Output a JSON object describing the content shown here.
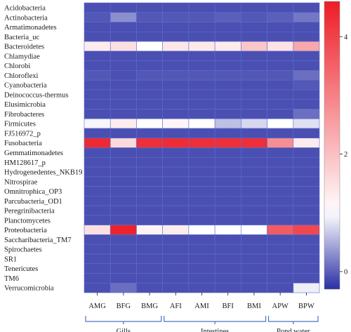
{
  "chart_data": {
    "type": "heatmap",
    "rows": [
      "Acidobacteria",
      "Actinobacteria",
      "Armatimonadetes",
      "Bacteria_uc",
      "Bacteroidetes",
      "Chlamydiae",
      "Chlorobi",
      "Chloroflexi",
      "Cyanobacteria",
      "Deinococcus-thermus",
      "Elusimicrobia",
      "Fibrobacteres",
      "Firmicutes",
      "FJ516972_p",
      "Fusobacteria",
      "Gemmatimonadetes",
      "HM128617_p",
      "Hydrogenedentes_NKB19",
      "Nitrospirae",
      "Omnitrophica_OP3",
      "Parcubacteria_OD1",
      "Peregrinibacteria",
      "Planctomycetes",
      "Proteobacteria",
      "Saccharibacteria_TM7",
      "Spirochaetes",
      "SR1",
      "Tenericutes",
      "TM6",
      "Verrucomicrobia"
    ],
    "columns": [
      "AMG",
      "BFG",
      "BMG",
      "AFI",
      "AMI",
      "BFI",
      "BMI",
      "APW",
      "BPW"
    ],
    "groups": [
      {
        "label": "Gills",
        "columns": [
          "AMG",
          "BFG",
          "BMG"
        ]
      },
      {
        "label": "Intestines",
        "columns": [
          "AFI",
          "AMI",
          "BFI",
          "BMI"
        ]
      },
      {
        "label": "Pond water",
        "columns": [
          "APW",
          "BPW"
        ]
      }
    ],
    "values": [
      [
        -0.1,
        -0.1,
        -0.1,
        -0.1,
        -0.1,
        -0.1,
        -0.1,
        -0.1,
        -0.1
      ],
      [
        -0.05,
        0.3,
        -0.05,
        -0.05,
        -0.05,
        0.0,
        -0.05,
        0.0,
        0.15
      ],
      [
        -0.1,
        -0.1,
        -0.1,
        -0.1,
        -0.1,
        -0.1,
        -0.1,
        -0.1,
        -0.1
      ],
      [
        -0.1,
        -0.1,
        -0.1,
        -0.1,
        -0.1,
        -0.1,
        -0.1,
        -0.1,
        -0.1
      ],
      [
        1.3,
        1.5,
        1.0,
        1.4,
        1.35,
        1.3,
        1.9,
        1.45,
        2.4
      ],
      [
        -0.1,
        -0.1,
        -0.1,
        -0.1,
        -0.1,
        -0.1,
        -0.1,
        -0.1,
        -0.1
      ],
      [
        -0.1,
        -0.1,
        -0.1,
        -0.1,
        -0.1,
        -0.1,
        -0.1,
        -0.1,
        -0.1
      ],
      [
        -0.05,
        -0.1,
        -0.05,
        -0.05,
        -0.05,
        -0.05,
        -0.05,
        -0.05,
        0.1
      ],
      [
        -0.1,
        -0.1,
        -0.1,
        -0.1,
        -0.1,
        -0.1,
        -0.1,
        -0.1,
        -0.05
      ],
      [
        -0.1,
        -0.1,
        -0.1,
        -0.1,
        -0.1,
        -0.1,
        -0.1,
        -0.1,
        -0.1
      ],
      [
        -0.1,
        -0.1,
        -0.1,
        -0.1,
        -0.1,
        -0.1,
        -0.1,
        -0.1,
        -0.1
      ],
      [
        -0.1,
        -0.1,
        -0.1,
        -0.1,
        -0.1,
        -0.1,
        -0.1,
        -0.1,
        0.1
      ],
      [
        0.95,
        1.3,
        1.0,
        1.15,
        1.0,
        0.6,
        0.75,
        1.0,
        0.8
      ],
      [
        -0.1,
        -0.1,
        -0.1,
        -0.1,
        -0.1,
        -0.1,
        -0.1,
        -0.1,
        -0.1
      ],
      [
        4.4,
        1.6,
        4.3,
        4.35,
        4.3,
        4.3,
        4.3,
        2.8,
        1.3
      ],
      [
        -0.1,
        -0.1,
        -0.1,
        -0.1,
        -0.1,
        -0.1,
        -0.1,
        -0.1,
        -0.1
      ],
      [
        -0.1,
        -0.1,
        -0.1,
        -0.1,
        -0.1,
        -0.1,
        -0.1,
        -0.1,
        -0.1
      ],
      [
        -0.1,
        -0.1,
        -0.1,
        -0.1,
        -0.1,
        -0.1,
        -0.1,
        -0.1,
        -0.1
      ],
      [
        -0.1,
        -0.1,
        -0.1,
        -0.1,
        -0.1,
        -0.1,
        -0.1,
        -0.1,
        -0.1
      ],
      [
        -0.1,
        -0.1,
        -0.1,
        -0.1,
        -0.1,
        -0.1,
        -0.1,
        -0.1,
        -0.1
      ],
      [
        -0.1,
        -0.1,
        -0.1,
        -0.1,
        -0.1,
        -0.1,
        -0.1,
        -0.1,
        -0.1
      ],
      [
        -0.1,
        -0.1,
        -0.1,
        -0.1,
        -0.1,
        -0.1,
        -0.1,
        -0.1,
        -0.1
      ],
      [
        -0.1,
        -0.1,
        -0.1,
        -0.1,
        -0.1,
        -0.1,
        -0.1,
        -0.1,
        -0.1
      ],
      [
        1.5,
        4.5,
        1.2,
        1.3,
        1.0,
        1.0,
        1.0,
        3.6,
        3.9
      ],
      [
        -0.1,
        -0.1,
        -0.1,
        -0.1,
        -0.1,
        -0.1,
        -0.1,
        -0.1,
        -0.1
      ],
      [
        -0.1,
        -0.1,
        -0.1,
        -0.1,
        -0.1,
        -0.1,
        -0.1,
        -0.1,
        -0.1
      ],
      [
        -0.1,
        -0.1,
        -0.1,
        -0.1,
        -0.1,
        -0.1,
        -0.1,
        -0.1,
        -0.1
      ],
      [
        -0.1,
        -0.1,
        -0.1,
        -0.1,
        -0.1,
        -0.1,
        -0.1,
        -0.1,
        -0.1
      ],
      [
        -0.1,
        -0.1,
        -0.1,
        -0.1,
        -0.1,
        -0.1,
        -0.1,
        -0.1,
        -0.1
      ],
      [
        -0.1,
        0.1,
        -0.1,
        -0.1,
        -0.1,
        -0.1,
        -0.1,
        -0.1,
        0.9
      ]
    ],
    "colorbar": {
      "ticks": [
        0,
        2,
        4
      ],
      "tick_labels": [
        "0",
        "2",
        "4"
      ],
      "range": [
        -0.3,
        4.6
      ],
      "colors": {
        "low": "#2a2fa4",
        "mid": "#ffffff",
        "high": "#ee1c25"
      },
      "mid_value": 1.0
    },
    "grid": true
  }
}
